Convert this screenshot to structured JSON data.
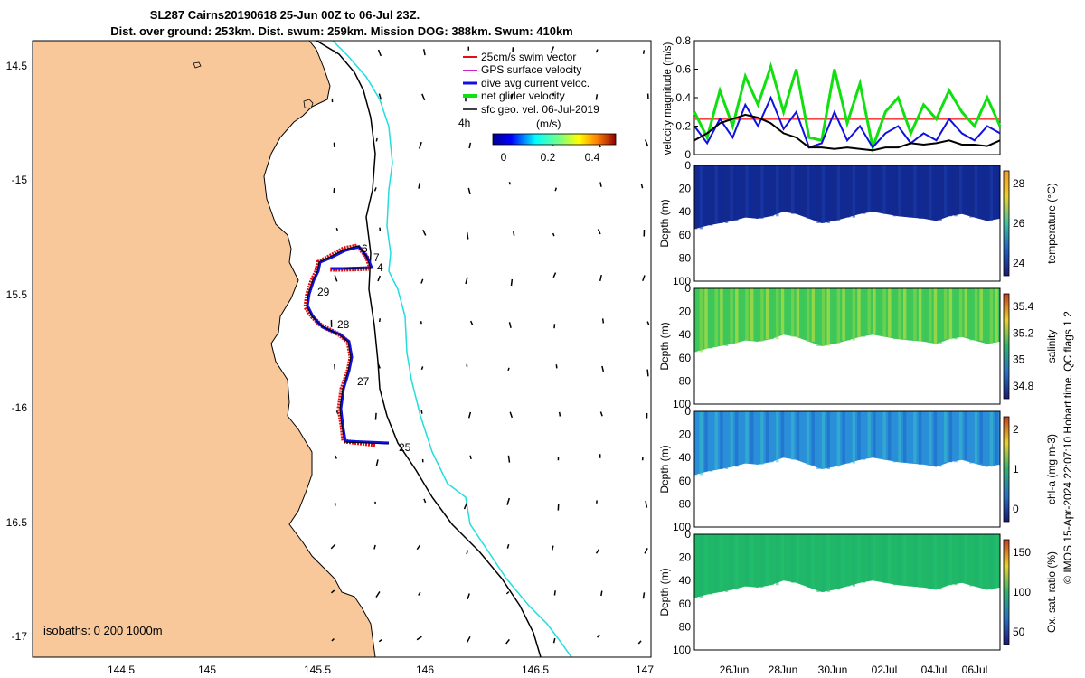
{
  "header": {
    "line1": "SL287 Cairns20190618 25-Jun 00Z to 06-Jul 23Z.",
    "line2": "Dist. over ground: 253km. Dist. swum: 259km. Mission DOG: 388km. Swum: 410km"
  },
  "map": {
    "lon_ticks": [
      "144.5",
      "145",
      "145.5",
      "146",
      "146.5",
      "147"
    ],
    "lat_ticks": [
      "14.5",
      "-15",
      "15.5",
      "-16",
      "16.5",
      "-17"
    ],
    "isobath_note": "isobaths: 0   200  1000m",
    "legend": [
      {
        "label": "25cm/s swim vector",
        "color": "#e01010"
      },
      {
        "label": "GPS surface velocity",
        "color": "#d020d0"
      },
      {
        "label": "dive avg current veloc.",
        "color": "#1010e0"
      },
      {
        "label": "net glider velocity",
        "color": "#10e010"
      },
      {
        "label": "sfc geo. vel. 06-Jul-2019",
        "color": "#000000"
      }
    ],
    "legend_tag": "4h",
    "colorbar_title": "(m/s)",
    "colorbar_ticks": [
      "0",
      "0.2",
      "0.4"
    ],
    "track_day_labels": [
      "6",
      "7",
      "4",
      "29",
      "28",
      "27",
      "25"
    ],
    "colors": {
      "land": "#f9c89a",
      "isobath_200": "#000000",
      "isobath_1000": "#22dddd",
      "track": "#e01010",
      "track_avg": "#1010e0"
    }
  },
  "chart_data": [
    {
      "type": "line",
      "ylabel": "velocity magnitude (m/s)",
      "ylim": [
        0,
        0.8
      ],
      "yticks": [
        "0",
        "0.2",
        "0.4",
        "0.6",
        "0.8"
      ],
      "x": [
        0,
        0.5,
        1,
        1.5,
        2,
        2.5,
        3,
        3.5,
        4,
        4.5,
        5,
        5.5,
        6,
        6.5,
        7,
        7.5,
        8,
        8.5,
        9,
        9.5,
        10,
        10.5,
        11,
        11.5,
        12
      ],
      "series": [
        {
          "name": "25cm/s swim vector",
          "color": "#ff4040",
          "values": [
            0.25,
            0.25,
            0.25,
            0.25,
            0.25,
            0.25,
            0.25,
            0.25,
            0.25,
            0.25,
            0.25,
            0.25,
            0.25,
            0.25,
            0.25,
            0.25,
            0.25,
            0.25,
            0.25,
            0.25,
            0.25,
            0.25,
            0.25,
            0.25,
            0.25
          ]
        },
        {
          "name": "net glider velocity",
          "color": "#10e010",
          "values": [
            0.3,
            0.12,
            0.45,
            0.2,
            0.55,
            0.35,
            0.62,
            0.3,
            0.6,
            0.12,
            0.1,
            0.6,
            0.22,
            0.5,
            0.05,
            0.3,
            0.4,
            0.15,
            0.35,
            0.25,
            0.45,
            0.3,
            0.2,
            0.4,
            0.2
          ]
        },
        {
          "name": "dive avg current veloc.",
          "color": "#1010e0",
          "values": [
            0.2,
            0.08,
            0.25,
            0.12,
            0.35,
            0.2,
            0.4,
            0.18,
            0.3,
            0.05,
            0.08,
            0.3,
            0.1,
            0.2,
            0.05,
            0.15,
            0.2,
            0.08,
            0.15,
            0.1,
            0.25,
            0.15,
            0.1,
            0.2,
            0.15
          ]
        },
        {
          "name": "sfc geo. vel.",
          "color": "#000000",
          "values": [
            0.1,
            0.15,
            0.22,
            0.25,
            0.28,
            0.26,
            0.22,
            0.15,
            0.12,
            0.05,
            0.05,
            0.04,
            0.05,
            0.04,
            0.03,
            0.05,
            0.05,
            0.08,
            0.07,
            0.08,
            0.1,
            0.07,
            0.07,
            0.06,
            0.1
          ]
        }
      ]
    },
    {
      "type": "heatmap",
      "ylabel": "Depth (m)",
      "cbar_label": "temperature (°C)",
      "cbar_ticks": [
        "28",
        "26",
        "24"
      ],
      "depth_ticks": [
        "20",
        "40",
        "60",
        "80",
        "100"
      ],
      "depth_range": [
        0,
        100
      ],
      "fill_colors": [
        "#13298f",
        "#1a3fb0",
        "#0d2a9a"
      ],
      "max_depth_profile": [
        55,
        52,
        50,
        48,
        45,
        46,
        44,
        40,
        42,
        46,
        50,
        48,
        45,
        42,
        40,
        42,
        44,
        45,
        46,
        48,
        44,
        42,
        45,
        48,
        46
      ]
    },
    {
      "type": "heatmap",
      "ylabel": "Depth (m)",
      "cbar_label": "salinity",
      "cbar_ticks": [
        "35.4",
        "35.2",
        "35",
        "34.8"
      ],
      "depth_ticks": [
        "20",
        "40",
        "60",
        "80",
        "100"
      ],
      "depth_range": [
        0,
        100
      ],
      "fill_colors": [
        "#3ec75a",
        "#8fd845",
        "#d8e43a"
      ],
      "max_depth_profile": [
        55,
        52,
        50,
        48,
        45,
        46,
        44,
        40,
        42,
        46,
        50,
        48,
        45,
        42,
        40,
        42,
        44,
        45,
        46,
        48,
        44,
        42,
        45,
        48,
        46
      ]
    },
    {
      "type": "heatmap",
      "ylabel": "Depth (m)",
      "cbar_label": "chl-a (mg m-3)",
      "cbar_ticks": [
        "2",
        "1",
        "0"
      ],
      "depth_ticks": [
        "20",
        "40",
        "60",
        "80",
        "100"
      ],
      "depth_range": [
        0,
        100
      ],
      "fill_colors": [
        "#2a8fd8",
        "#38c0c8",
        "#1a66c8"
      ],
      "max_depth_profile": [
        55,
        52,
        50,
        48,
        45,
        46,
        44,
        40,
        42,
        46,
        50,
        48,
        45,
        42,
        40,
        42,
        44,
        45,
        46,
        48,
        44,
        42,
        45,
        48,
        46
      ]
    },
    {
      "type": "heatmap",
      "ylabel": "Depth (m)",
      "cbar_label": "Ox. sat. ratio (%)",
      "cbar_ticks": [
        "150",
        "100",
        "50"
      ],
      "depth_ticks": [
        "20",
        "40",
        "60",
        "80",
        "100"
      ],
      "depth_range": [
        0,
        100
      ],
      "fill_colors": [
        "#20b868",
        "#1db070",
        "#22c070"
      ],
      "max_depth_profile": [
        55,
        52,
        50,
        48,
        45,
        46,
        44,
        40,
        42,
        46,
        50,
        48,
        45,
        42,
        40,
        42,
        44,
        45,
        46,
        48,
        44,
        42,
        45,
        48,
        46
      ]
    }
  ],
  "xaxis_dates": [
    "26Jun",
    "28Jun",
    "30Jun",
    "02Jul",
    "04Jul",
    "06Jul"
  ],
  "footer_note": "© IMOS 15-Apr-2024 22:07:10 Hobart time. QC flags 1  2"
}
